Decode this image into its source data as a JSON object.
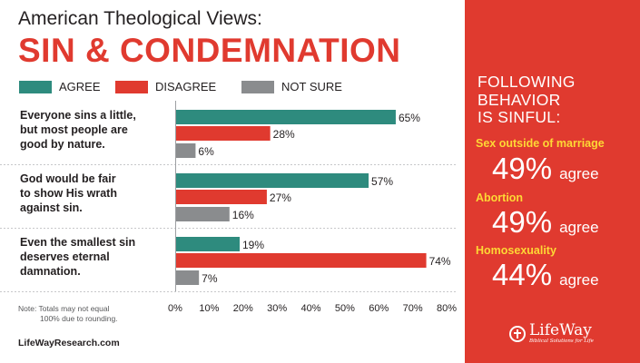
{
  "header": {
    "supertitle": "American Theological Views:",
    "title": "SIN & CONDEMNATION"
  },
  "colors": {
    "agree": "#2e8b7e",
    "disagree": "#e03a2f",
    "not_sure": "#8a8c8e",
    "accent": "#e03a2f",
    "highlight": "#fdd835"
  },
  "chart_data": {
    "type": "bar",
    "orientation": "horizontal",
    "categories": [
      [
        "Everyone sins a little,",
        "but most people are",
        "good by nature."
      ],
      [
        "God would be fair",
        "to show His wrath",
        "against sin."
      ],
      [
        "Even the smallest sin",
        "deserves eternal",
        "damnation."
      ]
    ],
    "series": [
      {
        "name": "AGREE",
        "values": [
          65,
          57,
          19
        ],
        "labels": [
          "65%",
          "57%",
          "19%"
        ]
      },
      {
        "name": "DISAGREE",
        "values": [
          28,
          27,
          74
        ],
        "labels": [
          "28%",
          "27%",
          "74%"
        ]
      },
      {
        "name": "NOT SURE",
        "values": [
          6,
          16,
          7
        ],
        "labels": [
          "6%",
          "16%",
          "7%"
        ]
      }
    ],
    "xlim": [
      0,
      80
    ],
    "xticks": [
      "0%",
      "10%",
      "20%",
      "30%",
      "40%",
      "50%",
      "60%",
      "70%",
      "80%"
    ],
    "legend": "top-left",
    "grid": false
  },
  "note": {
    "line1": "Note: Totals may not equal",
    "line2": "100% due to rounding."
  },
  "footer": {
    "site": "LifeWayResearch.com"
  },
  "sidebar": {
    "heading": [
      "FOLLOWING",
      "BEHAVIOR",
      "IS SINFUL:"
    ],
    "stats": [
      {
        "label": "Sex outside of marriage",
        "pct": "49%",
        "unit": "agree"
      },
      {
        "label": "Abortion",
        "pct": "49%",
        "unit": "agree"
      },
      {
        "label": "Homosexuality",
        "pct": "44%",
        "unit": "agree"
      }
    ],
    "logo": {
      "name": "LifeWay",
      "tagline": "Biblical Solutions for Life"
    }
  }
}
